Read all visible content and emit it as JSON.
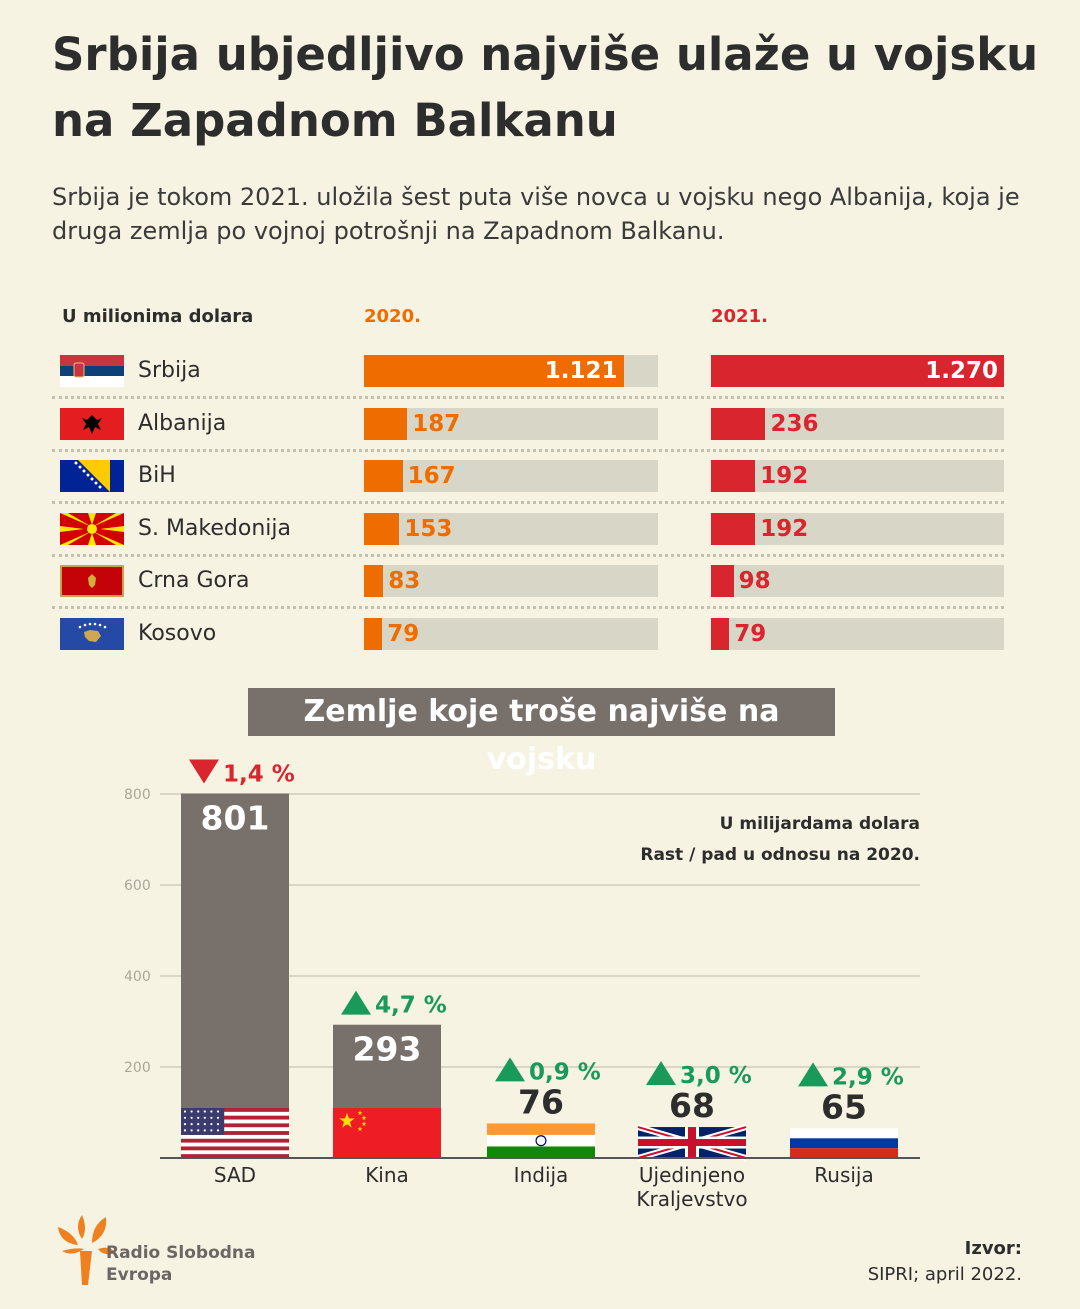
{
  "title": "Srbija ubjedljivo najviše ulaže u vojsku na Zapadnom Balkanu",
  "subtitle": "Srbija je tokom 2021. uložila šest puta više novca u vojsku nego Albanija, koja je druga zemlja po vojnoj potrošnji na Zapadnom Balkanu.",
  "balkans": {
    "units_label": "U milionima dolara",
    "year1_label": "2020.",
    "year2_label": "2021.",
    "colors": {
      "year1": "#ef6c00",
      "year2": "#d8252e",
      "track": "#d8d6c6"
    }
  },
  "section_title": "Zemlje koje troše najviše na vojsku",
  "world": {
    "units_note": "U milijardama dolara",
    "change_note": "Rast / pad u odnosu na 2020."
  },
  "chart_data": [
    {
      "type": "bar",
      "categories": [
        "Srbija",
        "Albanija",
        "BiH",
        "S. Makedonija",
        "Crna Gora",
        "Kosovo"
      ],
      "series": [
        {
          "name": "2020.",
          "values": [
            1121,
            187,
            167,
            153,
            83,
            79
          ],
          "labels": [
            "1.121",
            "187",
            "167",
            "153",
            "83",
            "79"
          ]
        },
        {
          "name": "2021.",
          "values": [
            1270,
            236,
            192,
            192,
            98,
            79
          ],
          "labels": [
            "1.270",
            "236",
            "192",
            "192",
            "98",
            "79"
          ]
        }
      ],
      "flags": [
        "serbia-flag",
        "albania-flag",
        "bih-flag",
        "north-macedonia-flag",
        "montenegro-flag",
        "kosovo-flag"
      ],
      "xlim": [
        0,
        1270
      ]
    },
    {
      "type": "bar",
      "categories": [
        "SAD",
        "Kina",
        "Indija",
        "Ujedinjeno Kraljevstvo",
        "Rusija"
      ],
      "values": [
        801,
        293,
        76,
        68,
        65
      ],
      "changes": [
        {
          "label": "1,4 %",
          "direction": "down"
        },
        {
          "label": "4,7 %",
          "direction": "up"
        },
        {
          "label": "0,9 %",
          "direction": "up"
        },
        {
          "label": "3,0 %",
          "direction": "up"
        },
        {
          "label": "2,9 %",
          "direction": "up"
        }
      ],
      "flags": [
        "usa-flag",
        "china-flag",
        "india-flag",
        "uk-flag",
        "russia-flag"
      ],
      "yticks": [
        200,
        400,
        600,
        800
      ],
      "ylim": [
        0,
        800
      ],
      "grid": true,
      "colors": {
        "bar": "#78716b",
        "up": "#1a9a5a",
        "down": "#d8252e",
        "grid": "#cfccbc",
        "tick": "#aaa79a"
      }
    }
  ],
  "brand": {
    "name": "Radio Slobodna Evropa",
    "line1": "Radio Slobodna",
    "line2": "Evropa"
  },
  "source": {
    "label": "Izvor:",
    "text": "SIPRI; april 2022."
  }
}
